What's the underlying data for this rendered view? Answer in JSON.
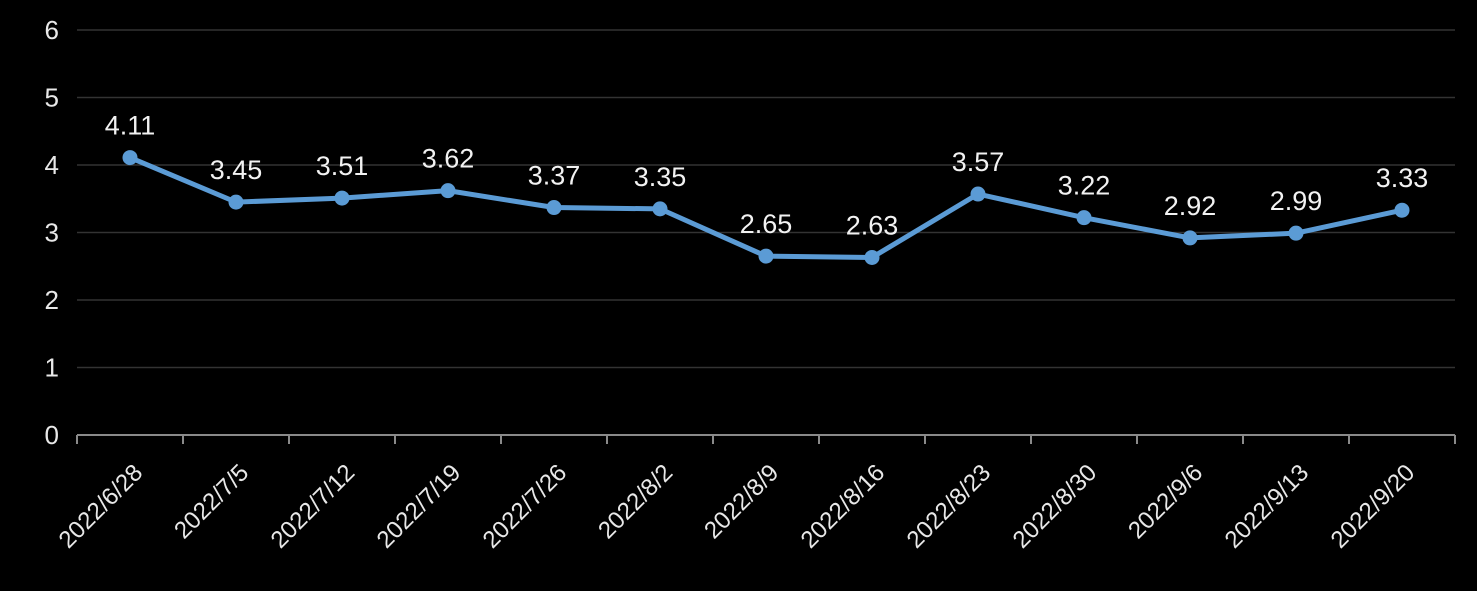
{
  "chart_data": {
    "type": "line",
    "title": "",
    "xlabel": "",
    "ylabel": "",
    "categories": [
      "2022/6/28",
      "2022/7/5",
      "2022/7/12",
      "2022/7/19",
      "2022/7/26",
      "2022/8/2",
      "2022/8/9",
      "2022/8/16",
      "2022/8/23",
      "2022/8/30",
      "2022/9/6",
      "2022/9/13",
      "2022/9/20"
    ],
    "values": [
      4.11,
      3.45,
      3.51,
      3.62,
      3.37,
      3.35,
      2.65,
      2.63,
      3.57,
      3.22,
      2.92,
      2.99,
      3.33
    ],
    "data_labels": [
      "4.11",
      "3.45",
      "3.51",
      "3.62",
      "3.37",
      "3.35",
      "2.65",
      "2.63",
      "3.57",
      "3.22",
      "2.92",
      "2.99",
      "3.33"
    ],
    "ylim": [
      0,
      6
    ],
    "yticks": [
      0,
      1,
      2,
      3,
      4,
      5,
      6
    ],
    "grid": true,
    "legend_position": "none",
    "marker": "circle",
    "x_label_rotation_deg": -45,
    "colors": {
      "line": "#5b9bd5",
      "marker": "#5b9bd5",
      "background": "#000000",
      "gridline": "#333333",
      "axis_line": "#8a8a8a",
      "tick_label": "#e8e8e8",
      "data_label": "#f2f2f2"
    }
  }
}
